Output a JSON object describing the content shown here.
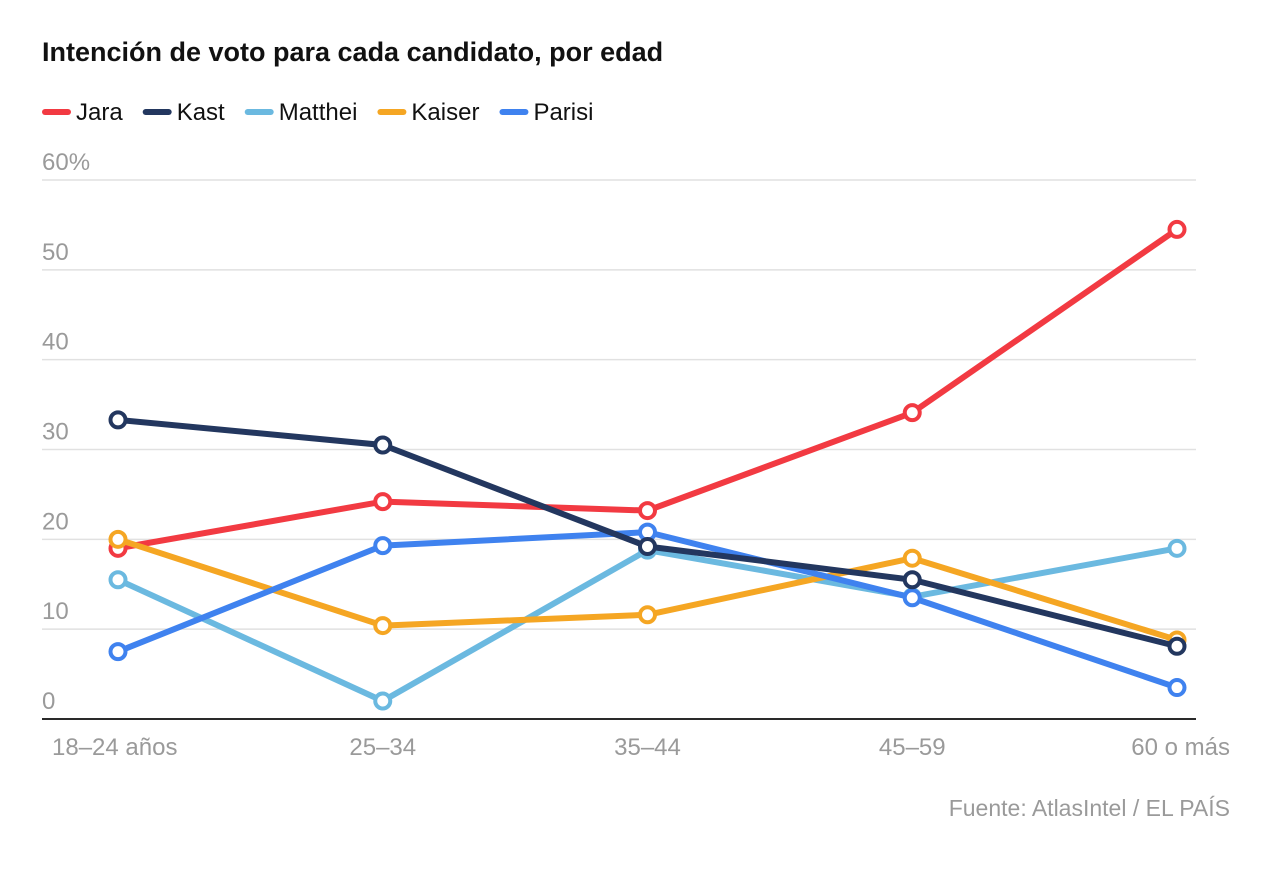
{
  "chart_data": {
    "type": "line",
    "title": "Intención de voto para cada candidato, por edad",
    "categories": [
      "18–24 años",
      "25–34",
      "35–44",
      "45–59",
      "60 o más"
    ],
    "y_ticks": [
      "60%",
      "50",
      "40",
      "30",
      "20",
      "10",
      "0"
    ],
    "ylim": [
      0,
      60
    ],
    "grid": true,
    "legend_position": "top-left",
    "source": "Fuente: AtlasIntel / EL PAÍS",
    "series": [
      {
        "name": "Jara",
        "color": "#f23a42",
        "values": [
          19.0,
          24.2,
          23.2,
          34.1,
          54.5
        ]
      },
      {
        "name": "Matthei",
        "color": "#6bb9e0",
        "values": [
          15.5,
          2.0,
          18.8,
          13.6,
          19.0
        ]
      },
      {
        "name": "Kaiser",
        "color": "#f5a623",
        "values": [
          20.0,
          10.4,
          11.6,
          17.9,
          8.8
        ]
      },
      {
        "name": "Parisi",
        "color": "#3f82ef",
        "values": [
          7.5,
          19.3,
          20.8,
          13.5,
          3.5
        ]
      },
      {
        "name": "Kast",
        "color": "#23375f",
        "values": [
          33.3,
          30.5,
          19.2,
          15.5,
          8.1
        ]
      }
    ],
    "legend_order": [
      "Jara",
      "Kast",
      "Matthei",
      "Kaiser",
      "Parisi"
    ]
  }
}
